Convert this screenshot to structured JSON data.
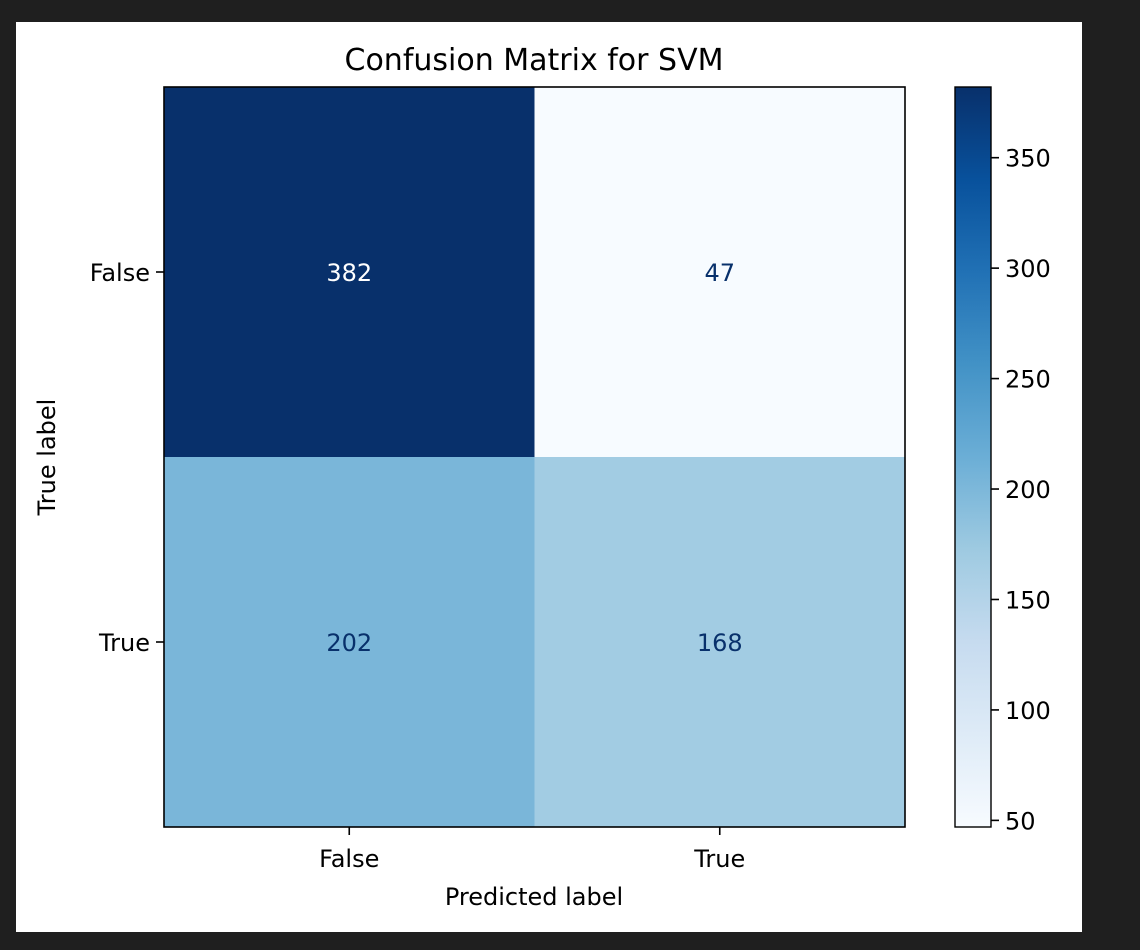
{
  "background_color": "#1f1f1f",
  "figure_color": "#ffffff",
  "chart_data": {
    "type": "heatmap",
    "title": "Confusion Matrix for SVM",
    "xlabel": "Predicted label",
    "ylabel": "True label",
    "x_categories": [
      "False",
      "True"
    ],
    "y_categories": [
      "False",
      "True"
    ],
    "values": [
      [
        382,
        47
      ],
      [
        202,
        168
      ]
    ],
    "colormap": "Blues",
    "colorbar": {
      "range": [
        47,
        382
      ],
      "ticks": [
        "50",
        "100",
        "150",
        "200",
        "250",
        "300",
        "350"
      ]
    },
    "cell_text_colors": {
      "dark_background": "#ffffff",
      "light_background": "#08306b"
    }
  }
}
